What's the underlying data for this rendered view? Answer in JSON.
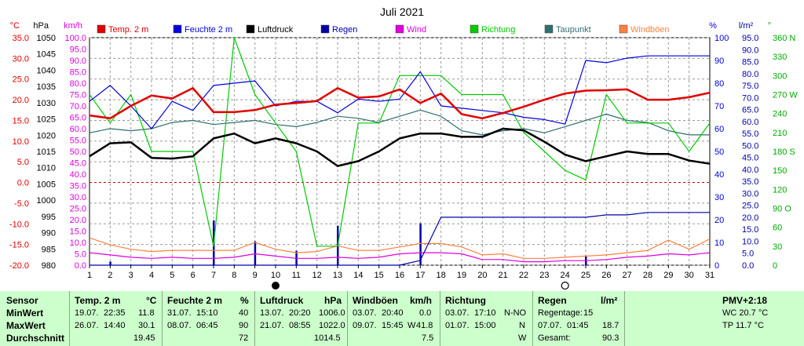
{
  "chart_data": {
    "type": "line",
    "title": "Juli 2021",
    "x": [
      1,
      2,
      3,
      4,
      5,
      6,
      7,
      8,
      9,
      10,
      11,
      12,
      13,
      14,
      15,
      16,
      17,
      18,
      19,
      20,
      21,
      22,
      23,
      24,
      25,
      26,
      27,
      28,
      29,
      30,
      31
    ],
    "series": [
      {
        "name": "Temp. 2 m",
        "axis": "temp",
        "color": "#e00000",
        "values": [
          16.2,
          15.5,
          18.5,
          21.0,
          20.3,
          22.8,
          17.0,
          17.0,
          17.5,
          18.8,
          19.2,
          19.7,
          22.8,
          20.5,
          20.8,
          22.5,
          19.2,
          21.5,
          16.5,
          15.5,
          16.8,
          18.3,
          20.0,
          21.5,
          22.2,
          22.3,
          22.5,
          20.0,
          20.0,
          20.6,
          21.7
        ]
      },
      {
        "name": "Feuchte 2 m",
        "axis": "percent",
        "color": "#0000e0",
        "values": [
          72,
          79,
          70,
          60,
          72,
          68,
          79,
          80,
          81,
          70,
          72,
          72,
          67,
          73,
          72,
          73,
          85,
          70,
          69,
          68,
          67,
          65,
          64,
          62,
          90,
          89,
          91,
          92,
          92,
          92,
          92
        ]
      },
      {
        "name": "Luftdruck",
        "axis": "pressure",
        "color": "#000000",
        "values": [
          1013.5,
          1017.5,
          1017.8,
          1013,
          1012.8,
          1013.5,
          1019,
          1020.5,
          1017.5,
          1019,
          1017.5,
          1015,
          1010.5,
          1012,
          1015,
          1019,
          1020.5,
          1020.5,
          1019.5,
          1019.5,
          1022,
          1021.5,
          1018,
          1014,
          1012,
          1013.5,
          1015,
          1014.2,
          1014.2,
          1012.2,
          1011.2
        ]
      },
      {
        "name": "Regen",
        "axis": "rain",
        "color": "#0000aa",
        "values": [
          0,
          0,
          0,
          0,
          0,
          0,
          0,
          0,
          0,
          0,
          0,
          0,
          0,
          0,
          0,
          0,
          2,
          20,
          20,
          20,
          20,
          20,
          20,
          20,
          20,
          21,
          21,
          22,
          22,
          22,
          22
        ]
      },
      {
        "name": "Wind",
        "axis": "wind",
        "color": "#e000e0",
        "values": [
          5.5,
          4.5,
          3.5,
          3.0,
          3.5,
          3.0,
          3.0,
          3.5,
          5.0,
          4.0,
          3.0,
          3.0,
          3.5,
          3.0,
          3.5,
          5.0,
          5.5,
          5.5,
          5.0,
          2.5,
          2.5,
          1.5,
          1.5,
          2.0,
          2.0,
          2.5,
          3.5,
          4.0,
          5.0,
          4.5,
          5.5
        ]
      },
      {
        "name": "Richtung",
        "axis": "direction",
        "color": "#00cc00",
        "values": [
          270,
          225,
          270,
          180,
          180,
          180,
          30,
          360,
          270,
          225,
          180,
          30,
          30,
          225,
          225,
          300,
          300,
          300,
          270,
          270,
          270,
          210,
          180,
          150,
          135,
          270,
          225,
          225,
          225,
          180,
          225
        ]
      },
      {
        "name": "Taupunkt",
        "axis": "temp",
        "color": "#2f6f6f",
        "values": [
          12.0,
          13.0,
          12.5,
          13.0,
          14.5,
          15.0,
          14.0,
          14.5,
          15.0,
          14.0,
          13.5,
          14.5,
          16.0,
          15.5,
          14.5,
          16.0,
          17.5,
          16.0,
          12.5,
          11.5,
          12.5,
          13.0,
          12.0,
          13.5,
          15.0,
          16.5,
          15.0,
          14.5,
          12.5,
          11.5,
          11.5
        ]
      },
      {
        "name": "Windböen",
        "axis": "wind",
        "color": "#ff8040",
        "values": [
          12.0,
          9.0,
          7.0,
          6.0,
          6.5,
          6.5,
          6.5,
          6.5,
          10.0,
          7.0,
          5.5,
          6.0,
          8.5,
          6.5,
          6.5,
          8.0,
          9.5,
          9.5,
          8.0,
          4.5,
          5.0,
          3.0,
          3.0,
          3.5,
          4.0,
          4.5,
          5.5,
          6.5,
          11.0,
          7.0,
          11.5
        ]
      }
    ],
    "rain_daily": {
      "name": "Regen Tag",
      "days": [
        2,
        7,
        9,
        11,
        13,
        17,
        25
      ],
      "values": [
        1.5,
        18.7,
        10.0,
        6.0,
        16.5,
        17.5,
        4.0
      ],
      "color": "#0000aa"
    },
    "axes": {
      "temp": {
        "label": "°C",
        "ylim": [
          -20,
          35
        ],
        "ticks": [
          "35.0",
          "30.0",
          "25.0",
          "20.0",
          "15.0",
          "10.0",
          "5.0",
          "0.0",
          "-5.0",
          "-10.0",
          "-15.0",
          "-20.0"
        ],
        "color": "#e00000"
      },
      "pressure": {
        "label": "hPa",
        "ylim": [
          980,
          1050
        ],
        "ticks": [
          "1050",
          "1045",
          "1040",
          "1035",
          "1030",
          "1025",
          "1020",
          "1015",
          "1010",
          "1005",
          "1000",
          "995",
          "990",
          "985",
          "980"
        ],
        "color": "#000000"
      },
      "wind": {
        "label": "km/h",
        "ylim": [
          0,
          100
        ],
        "ticks": [
          "100.0",
          "95.0",
          "90.0",
          "85.0",
          "80.0",
          "75.0",
          "70.0",
          "65.0",
          "60.0",
          "55.0",
          "50.0",
          "45.0",
          "40.0",
          "35.0",
          "30.0",
          "25.0",
          "20.0",
          "15.0",
          "10.0",
          "5.0",
          "0.0"
        ],
        "color": "#e000e0"
      },
      "percent": {
        "label": "%",
        "ylim": [
          0,
          100
        ],
        "ticks": [
          "100",
          "90",
          "80",
          "70",
          "60",
          "50",
          "40",
          "30",
          "20",
          "10",
          "0"
        ],
        "color": "#0000e0"
      },
      "rain": {
        "label": "l/m²",
        "ylim": [
          0,
          95
        ],
        "ticks": [
          "95.0",
          "90.0",
          "85.0",
          "80.0",
          "75.0",
          "70.0",
          "65.0",
          "60.0",
          "55.0",
          "50.0",
          "45.0",
          "40.0",
          "35.0",
          "30.0",
          "25.0",
          "20.0",
          "15.0",
          "10.0",
          "5.0",
          "0.0"
        ],
        "color": "#0000aa"
      },
      "direction": {
        "label": "°",
        "ylim": [
          0,
          360
        ],
        "ticks": [
          "360 N",
          "330",
          "300",
          "270 W",
          "240",
          "210",
          "180 S",
          "150",
          "120",
          "90 O",
          "60",
          "30",
          "0"
        ],
        "color": "#00aa00"
      }
    },
    "xticks": [
      "1",
      "2",
      "3",
      "4",
      "5",
      "6",
      "7",
      "8",
      "9",
      "10",
      "11",
      "12",
      "13",
      "14",
      "15",
      "16",
      "17",
      "18",
      "19",
      "20",
      "21",
      "22",
      "23",
      "24",
      "25",
      "26",
      "27",
      "28",
      "29",
      "30",
      "31"
    ],
    "moon": {
      "new_moon_day": 10,
      "full_moon_day": 24
    },
    "grid": true,
    "legend": "top"
  },
  "table": {
    "headers": [
      {
        "title": "Sensor",
        "unit": ""
      },
      {
        "title": "Temp. 2 m",
        "unit": "°C"
      },
      {
        "title": "Feuchte 2 m",
        "unit": "%"
      },
      {
        "title": "Luftdruck",
        "unit": "hPa"
      },
      {
        "title": "Windböen",
        "unit": "km/h"
      },
      {
        "title": "Richtung",
        "unit": ""
      },
      {
        "title": "Regen",
        "unit": "l/m²"
      },
      {
        "title": "PMV+2:18",
        "unit": ""
      }
    ],
    "row_labels": [
      "MinWert",
      "MaxWert",
      "Durchschnitt"
    ],
    "temp": {
      "min_date": "19.07.",
      "min_time": "22:35",
      "min": "11.8",
      "max_date": "26.07.",
      "max_time": "14:40",
      "max": "30.1",
      "avg": "19.45"
    },
    "humidity": {
      "min_date": "31.07.",
      "min_time": "15:10",
      "min": "40",
      "max_date": "08.07.",
      "max_time": "06:45",
      "max": "90",
      "avg": "72"
    },
    "pressure": {
      "min_date": "13.07.",
      "min_time": "20:20",
      "min": "1006.0",
      "max_date": "21.07.",
      "max_time": "08:55",
      "max": "1022.0",
      "avg": "1014.5"
    },
    "gusts": {
      "min_date": "03.07.",
      "min_time": "20:40",
      "min": "0.0",
      "max_date": "09.07.",
      "max_time": "15:45",
      "max_dir": "W",
      "max": "41.8",
      "avg": "7.5"
    },
    "direction": {
      "min_date": "03.07.",
      "min_time": "17:10",
      "min": "N-NO",
      "max_date": "01.07.",
      "max_time": "15:00",
      "max": "N",
      "avg": "W"
    },
    "rain": {
      "days_label": "Regentage:",
      "days": "15",
      "max_date": "07.07.",
      "max_time": "01:45",
      "max": "18.7",
      "total_label": "Gesamt:",
      "total": "90.3"
    },
    "pmv": {
      "wc": "WC 20.7 °C",
      "tp": "TP 11.7 °C"
    }
  }
}
